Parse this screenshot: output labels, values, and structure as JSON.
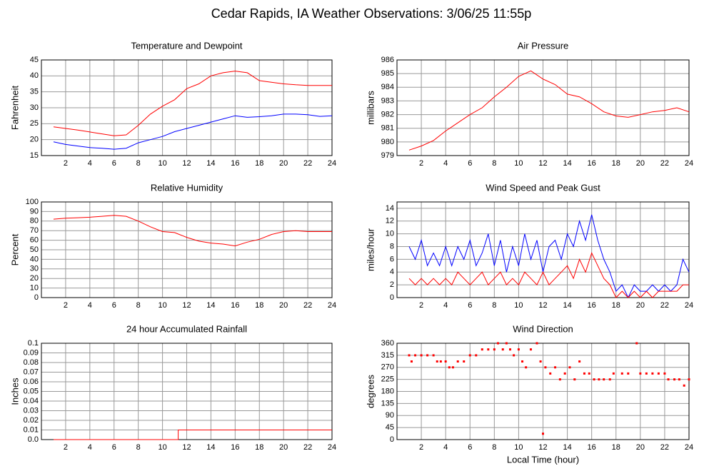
{
  "title": "Cedar Rapids, IA Weather Observations: 3/06/25 11:55p",
  "chart_data": [
    {
      "type": "line",
      "title": "Temperature and Dewpoint",
      "y_label": "Fahrenheit",
      "x": [
        1,
        2,
        3,
        4,
        5,
        6,
        7,
        8,
        9,
        10,
        11,
        12,
        13,
        14,
        15,
        16,
        17,
        18,
        19,
        20,
        21,
        22,
        23,
        24
      ],
      "series": [
        {
          "name": "Temperature",
          "color": "#ff0000",
          "values": [
            24,
            23.5,
            23,
            22.4,
            21.8,
            21.2,
            21.5,
            24.5,
            28,
            30.5,
            32.5,
            36,
            37.5,
            40,
            41,
            41.5,
            41,
            38.5,
            38,
            37.5,
            37.2,
            37,
            37,
            37
          ]
        },
        {
          "name": "Dewpoint",
          "color": "#0000ff",
          "values": [
            19.3,
            18.5,
            18,
            17.5,
            17.3,
            17,
            17.3,
            19,
            20,
            21,
            22.5,
            23.5,
            24.5,
            25.5,
            26.5,
            27.5,
            27,
            27.2,
            27.5,
            28,
            28,
            27.8,
            27.3,
            27.5
          ]
        }
      ],
      "xlim": [
        0,
        24
      ],
      "xticks": [
        2,
        4,
        6,
        8,
        10,
        12,
        14,
        16,
        18,
        20,
        22,
        24
      ],
      "ylim": [
        15,
        45
      ],
      "yticks": [
        15,
        20,
        25,
        30,
        35,
        40,
        45
      ],
      "grid": true
    },
    {
      "type": "line",
      "title": "Air Pressure",
      "y_label": "millibars",
      "x": [
        1,
        2,
        3,
        4,
        5,
        6,
        7,
        8,
        9,
        10,
        11,
        12,
        13,
        14,
        15,
        16,
        17,
        18,
        19,
        20,
        21,
        22,
        23,
        24
      ],
      "series": [
        {
          "name": "Pressure",
          "color": "#ff0000",
          "values": [
            979.4,
            979.7,
            980.1,
            980.8,
            981.4,
            982,
            982.5,
            983.3,
            984,
            984.8,
            985.2,
            984.6,
            984.2,
            983.5,
            983.3,
            982.8,
            982.2,
            981.9,
            981.8,
            982,
            982.2,
            982.3,
            982.5,
            982.2
          ]
        }
      ],
      "xlim": [
        0,
        24
      ],
      "xticks": [
        2,
        4,
        6,
        8,
        10,
        12,
        14,
        16,
        18,
        20,
        22,
        24
      ],
      "ylim": [
        979,
        986
      ],
      "yticks": [
        979,
        980,
        981,
        982,
        983,
        984,
        985,
        986
      ],
      "grid": true
    },
    {
      "type": "line",
      "title": "Relative Humidity",
      "y_label": "Percent",
      "x": [
        1,
        2,
        3,
        4,
        5,
        6,
        7,
        8,
        9,
        10,
        11,
        12,
        13,
        14,
        15,
        16,
        17,
        18,
        19,
        20,
        21,
        22,
        23,
        24
      ],
      "series": [
        {
          "name": "Humidity",
          "color": "#ff0000",
          "values": [
            82,
            83,
            83.5,
            84,
            85,
            86,
            85,
            80,
            74,
            69,
            68,
            63,
            59,
            57,
            56,
            54,
            58,
            61,
            66,
            69,
            70,
            69,
            69,
            69
          ]
        }
      ],
      "xlim": [
        0,
        24
      ],
      "xticks": [
        2,
        4,
        6,
        8,
        10,
        12,
        14,
        16,
        18,
        20,
        22,
        24
      ],
      "ylim": [
        0,
        100
      ],
      "yticks": [
        0,
        10,
        20,
        30,
        40,
        50,
        60,
        70,
        80,
        90,
        100
      ],
      "grid": true
    },
    {
      "type": "line",
      "title": "Wind Speed and Peak Gust",
      "y_label": "miles/hour",
      "x": [
        1,
        1.5,
        2,
        2.5,
        3,
        3.5,
        4,
        4.5,
        5,
        5.5,
        6,
        6.5,
        7,
        7.5,
        8,
        8.5,
        9,
        9.5,
        10,
        10.5,
        11,
        11.5,
        12,
        12.5,
        13,
        13.5,
        14,
        14.5,
        15,
        15.5,
        16,
        16.5,
        17,
        17.5,
        18,
        18.5,
        19,
        19.5,
        20,
        20.5,
        21,
        21.5,
        22,
        22.5,
        23,
        23.5,
        24
      ],
      "series": [
        {
          "name": "Peak Gust",
          "color": "#0000ff",
          "values": [
            8,
            6,
            9,
            5,
            7,
            5,
            8,
            5,
            8,
            6,
            9,
            5,
            7,
            10,
            5,
            9,
            4,
            8,
            5,
            10,
            6,
            9,
            4,
            8,
            9,
            6,
            10,
            8,
            12,
            9,
            13,
            9,
            6,
            4,
            1,
            2,
            0,
            2,
            1,
            1,
            2,
            1,
            2,
            1,
            2,
            6,
            4
          ]
        },
        {
          "name": "Wind Speed",
          "color": "#ff0000",
          "values": [
            3,
            2,
            3,
            2,
            3,
            2,
            3,
            2,
            4,
            3,
            2,
            3,
            4,
            2,
            3,
            4,
            2,
            3,
            2,
            4,
            3,
            2,
            4,
            2,
            3,
            4,
            5,
            3,
            6,
            4,
            7,
            5,
            3,
            2,
            0,
            1,
            0,
            1,
            0,
            1,
            0,
            1,
            1,
            1,
            1,
            2,
            2
          ]
        }
      ],
      "xlim": [
        0,
        24
      ],
      "xticks": [
        2,
        4,
        6,
        8,
        10,
        12,
        14,
        16,
        18,
        20,
        22,
        24
      ],
      "ylim": [
        0,
        15
      ],
      "yticks": [
        0,
        2,
        4,
        6,
        8,
        10,
        12,
        14
      ],
      "grid": true
    },
    {
      "type": "line",
      "title": "24 hour Accumulated Rainfall",
      "y_label": "Inches",
      "x": [
        1,
        11.3,
        11.3,
        24
      ],
      "series": [
        {
          "name": "Rainfall",
          "color": "#ff0000",
          "values": [
            0,
            0,
            0.01,
            0.01
          ]
        }
      ],
      "xlim": [
        0,
        24
      ],
      "xticks": [
        2,
        4,
        6,
        8,
        10,
        12,
        14,
        16,
        18,
        20,
        22,
        24
      ],
      "ylim": [
        0,
        0.1
      ],
      "yticks": [
        {
          "value": 0,
          "label": "0.0"
        },
        0.01,
        0.02,
        0.03,
        0.04,
        0.05,
        0.06,
        0.07,
        0.08,
        0.09,
        0.1
      ],
      "grid": true
    },
    {
      "type": "scatter",
      "title": "Wind Direction",
      "y_label": "degrees",
      "x_label": "Local Time (hour)",
      "x": [
        1,
        1.2,
        1.5,
        2,
        2.5,
        3,
        3.3,
        3.6,
        4,
        4.3,
        4.6,
        5,
        5.5,
        6,
        6.5,
        7,
        7.5,
        8,
        8.3,
        8.7,
        9,
        9.3,
        9.6,
        10,
        10.3,
        10.6,
        11,
        11.5,
        11.8,
        12,
        12.2,
        12.6,
        13,
        13.4,
        13.8,
        14.2,
        14.6,
        15,
        15.4,
        15.8,
        16.2,
        16.6,
        17,
        17.5,
        17.8,
        18.5,
        19,
        19.7,
        20,
        20.5,
        21,
        21.5,
        22,
        22.3,
        22.8,
        23.2,
        23.6,
        24
      ],
      "series": [
        {
          "name": "Direction",
          "color": "#ff0000",
          "values": [
            315,
            292,
            315,
            315,
            315,
            315,
            292,
            292,
            292,
            270,
            270,
            292,
            292,
            315,
            315,
            337,
            337,
            337,
            360,
            337,
            360,
            337,
            315,
            337,
            292,
            270,
            337,
            360,
            292,
            22,
            270,
            247,
            270,
            225,
            247,
            270,
            225,
            292,
            247,
            247,
            225,
            225,
            225,
            225,
            247,
            247,
            247,
            360,
            247,
            247,
            247,
            247,
            247,
            225,
            225,
            225,
            202,
            225
          ]
        }
      ],
      "xlim": [
        0,
        24
      ],
      "xticks": [
        2,
        4,
        6,
        8,
        10,
        12,
        14,
        16,
        18,
        20,
        22,
        24
      ],
      "ylim": [
        0,
        360
      ],
      "yticks": [
        0,
        45,
        90,
        135,
        180,
        225,
        270,
        315,
        360
      ],
      "grid": true
    }
  ]
}
